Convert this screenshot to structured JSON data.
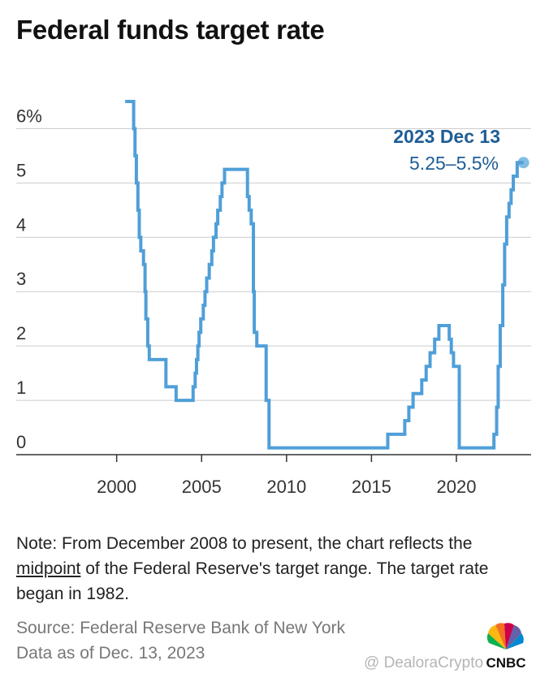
{
  "title": "Federal funds target rate",
  "note": {
    "prefix": "Note: From December 2008 to present, the chart reflects the ",
    "link": "midpoint",
    "suffix": " of the Federal Reserve's target range. The target rate began in 1982."
  },
  "source": "Source: Federal Reserve Bank of New York",
  "date_note": "Data as of Dec. 13, 2023",
  "watermark": "@ DealoraCrypto",
  "logo_text": "CNBC",
  "colors": {
    "line": "#4f9fd8",
    "annotation": "#1e5d96",
    "grid": "#cccccc",
    "axis": "#333333"
  },
  "chart_data": {
    "type": "line",
    "step": true,
    "title": "Federal funds target rate",
    "xlabel": "",
    "ylabel": "",
    "x_ticks": [
      "2000",
      "2005",
      "2010",
      "2015",
      "2020"
    ],
    "y_ticks": [
      "6%",
      "5",
      "4",
      "3",
      "2",
      "1",
      "0"
    ],
    "xlim": [
      1996.0,
      2024.4
    ],
    "ylim": [
      0,
      6.5
    ],
    "grid": true,
    "annotation": {
      "date": "2023 Dec 13",
      "value": "5.25–5.5%"
    },
    "series": [
      {
        "x": [
          2000.5,
          2001.0,
          2001.08,
          2001.16,
          2001.25,
          2001.33,
          2001.42,
          2001.58,
          2001.67,
          2001.72,
          2001.83,
          2001.92,
          2002.9,
          2003.5,
          2004.5,
          2004.62,
          2004.7,
          2004.78,
          2004.85,
          2004.95,
          2005.1,
          2005.2,
          2005.3,
          2005.45,
          2005.6,
          2005.7,
          2005.85,
          2005.95,
          2006.1,
          2006.2,
          2006.35,
          2006.5,
          2007.7,
          2007.8,
          2007.92,
          2008.05,
          2008.1,
          2008.25,
          2008.8,
          2008.97,
          2015.96,
          2016.96,
          2017.2,
          2017.45,
          2017.96,
          2018.22,
          2018.45,
          2018.72,
          2018.97,
          2019.58,
          2019.7,
          2019.83,
          2020.17,
          2020.22,
          2022.21,
          2022.37,
          2022.46,
          2022.58,
          2022.73,
          2022.84,
          2022.96,
          2023.1,
          2023.22,
          2023.35,
          2023.58,
          2023.95
        ],
        "y": [
          6.5,
          6.0,
          5.5,
          5.0,
          4.5,
          4.0,
          3.75,
          3.5,
          3.0,
          2.5,
          2.0,
          1.75,
          1.25,
          1.0,
          1.25,
          1.5,
          1.75,
          2.0,
          2.25,
          2.5,
          2.75,
          3.0,
          3.25,
          3.5,
          3.75,
          4.0,
          4.25,
          4.5,
          4.75,
          5.0,
          5.25,
          5.25,
          4.75,
          4.5,
          4.25,
          3.0,
          2.25,
          2.0,
          1.0,
          0.125,
          0.375,
          0.625,
          0.875,
          1.125,
          1.375,
          1.625,
          1.875,
          2.125,
          2.375,
          2.125,
          1.875,
          1.625,
          0.125,
          0.125,
          0.375,
          0.875,
          1.625,
          2.375,
          3.125,
          3.875,
          4.375,
          4.625,
          4.875,
          5.125,
          5.375,
          5.375
        ]
      }
    ]
  }
}
